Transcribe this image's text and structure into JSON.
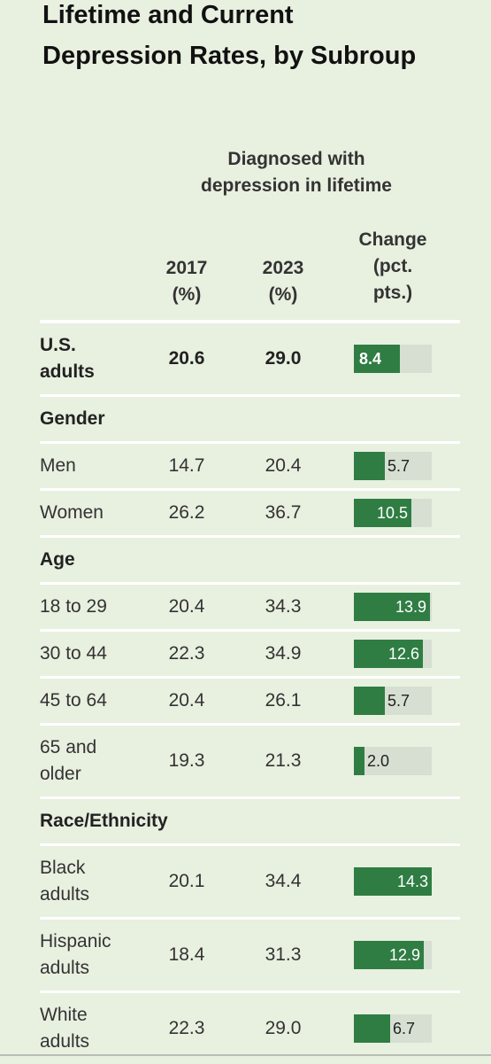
{
  "title_lines": [
    "Lifetime and Current",
    "Depression Rates, by Subroup"
  ],
  "colors": {
    "background": "#e8f0e0",
    "bar_fill": "#2f7d43",
    "bar_track": "#d6dfd2",
    "rule": "#ffffff"
  },
  "chart_data": {
    "type": "table",
    "title": "Lifetime and Current Depression Rates, by Subroup",
    "column_group": [
      "Diagnosed with",
      "depression in lifetime"
    ],
    "columns": {
      "y2017": [
        "2017",
        "(%)"
      ],
      "y2023": [
        "2023",
        "(%)"
      ],
      "change": [
        "Change",
        "(pct.",
        "pts.)"
      ]
    },
    "change_scale_max": 14.3,
    "rows": [
      {
        "kind": "data",
        "bold": true,
        "label": [
          "U.S.",
          "adults"
        ],
        "v2017": "20.6",
        "v2023": "29.0",
        "change": 8.4,
        "change_label": "8.4"
      },
      {
        "kind": "section",
        "label": "Gender"
      },
      {
        "kind": "data",
        "label": [
          "Men"
        ],
        "v2017": "14.7",
        "v2023": "20.4",
        "change": 5.7,
        "change_label": "5.7"
      },
      {
        "kind": "data",
        "label": [
          "Women"
        ],
        "v2017": "26.2",
        "v2023": "36.7",
        "change": 10.5,
        "change_label": "10.5"
      },
      {
        "kind": "section",
        "label": "Age"
      },
      {
        "kind": "data",
        "label": [
          "18 to 29"
        ],
        "v2017": "20.4",
        "v2023": "34.3",
        "change": 13.9,
        "change_label": "13.9"
      },
      {
        "kind": "data",
        "label": [
          "30 to 44"
        ],
        "v2017": "22.3",
        "v2023": "34.9",
        "change": 12.6,
        "change_label": "12.6"
      },
      {
        "kind": "data",
        "label": [
          "45 to 64"
        ],
        "v2017": "20.4",
        "v2023": "26.1",
        "change": 5.7,
        "change_label": "5.7"
      },
      {
        "kind": "data",
        "label": [
          "65 and",
          "older"
        ],
        "v2017": "19.3",
        "v2023": "21.3",
        "change": 2.0,
        "change_label": "2.0"
      },
      {
        "kind": "section",
        "label": "Race/Ethnicity"
      },
      {
        "kind": "data",
        "label": [
          "Black",
          "adults"
        ],
        "v2017": "20.1",
        "v2023": "34.4",
        "change": 14.3,
        "change_label": "14.3"
      },
      {
        "kind": "data",
        "label": [
          "Hispanic",
          "adults"
        ],
        "v2017": "18.4",
        "v2023": "31.3",
        "change": 12.9,
        "change_label": "12.9"
      },
      {
        "kind": "data",
        "label": [
          "White",
          "adults"
        ],
        "v2017": "22.3",
        "v2023": "29.0",
        "change": 6.7,
        "change_label": "6.7"
      }
    ]
  }
}
